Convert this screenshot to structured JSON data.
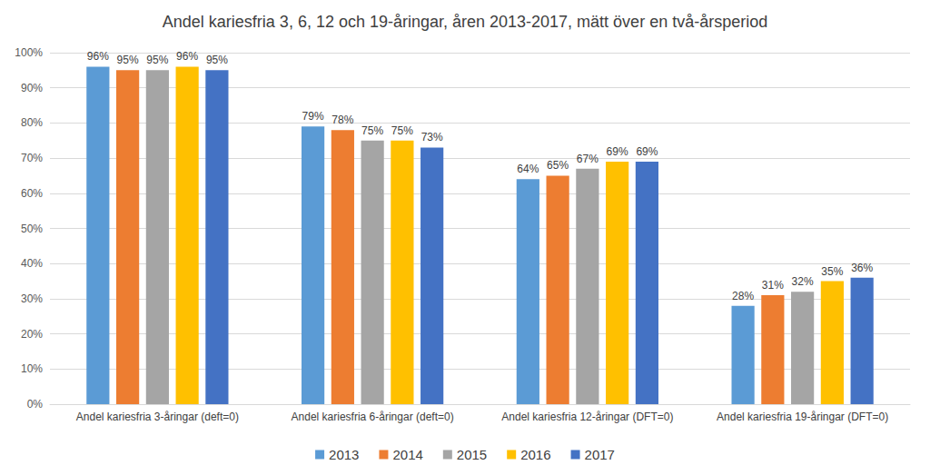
{
  "chart_data": {
    "type": "bar",
    "title": "Andel kariesfria 3, 6, 12 och 19-åringar, åren 2013-2017, mätt över en två-årsperiod",
    "categories": [
      "Andel kariesfria 3-åringar (deft=0)",
      "Andel kariesfria 6-åringar (deft=0)",
      "Andel kariesfria 12-åringar (DFT=0)",
      "Andel kariesfria 19-åringar (DFT=0)"
    ],
    "series": [
      {
        "name": "2013",
        "color": "#5b9bd5",
        "values": [
          96,
          79,
          64,
          28
        ],
        "value_labels": [
          "96%",
          "79%",
          "64%",
          "28%"
        ]
      },
      {
        "name": "2014",
        "color": "#ed7d31",
        "values": [
          95,
          78,
          65,
          31
        ],
        "value_labels": [
          "95%",
          "78%",
          "65%",
          "31%"
        ]
      },
      {
        "name": "2015",
        "color": "#a5a5a5",
        "values": [
          95,
          75,
          67,
          32
        ],
        "value_labels": [
          "95%",
          "75%",
          "67%",
          "32%"
        ]
      },
      {
        "name": "2016",
        "color": "#ffc000",
        "values": [
          96,
          75,
          69,
          35
        ],
        "value_labels": [
          "96%",
          "75%",
          "69%",
          "35%"
        ]
      },
      {
        "name": "2017",
        "color": "#4472c4",
        "values": [
          95,
          73,
          69,
          36
        ],
        "value_labels": [
          "95%",
          "73%",
          "69%",
          "36%"
        ]
      }
    ],
    "ylim": [
      0,
      100
    ],
    "yticks": [
      {
        "value": 0,
        "label": "0%"
      },
      {
        "value": 10,
        "label": "10%"
      },
      {
        "value": 20,
        "label": "20%"
      },
      {
        "value": 30,
        "label": "30%"
      },
      {
        "value": 40,
        "label": "40%"
      },
      {
        "value": 50,
        "label": "50%"
      },
      {
        "value": 60,
        "label": "60%"
      },
      {
        "value": 70,
        "label": "70%"
      },
      {
        "value": 80,
        "label": "80%"
      },
      {
        "value": 90,
        "label": "90%"
      },
      {
        "value": 100,
        "label": "100%"
      }
    ],
    "grid": true,
    "legend": "bottom",
    "data_labels": true
  }
}
